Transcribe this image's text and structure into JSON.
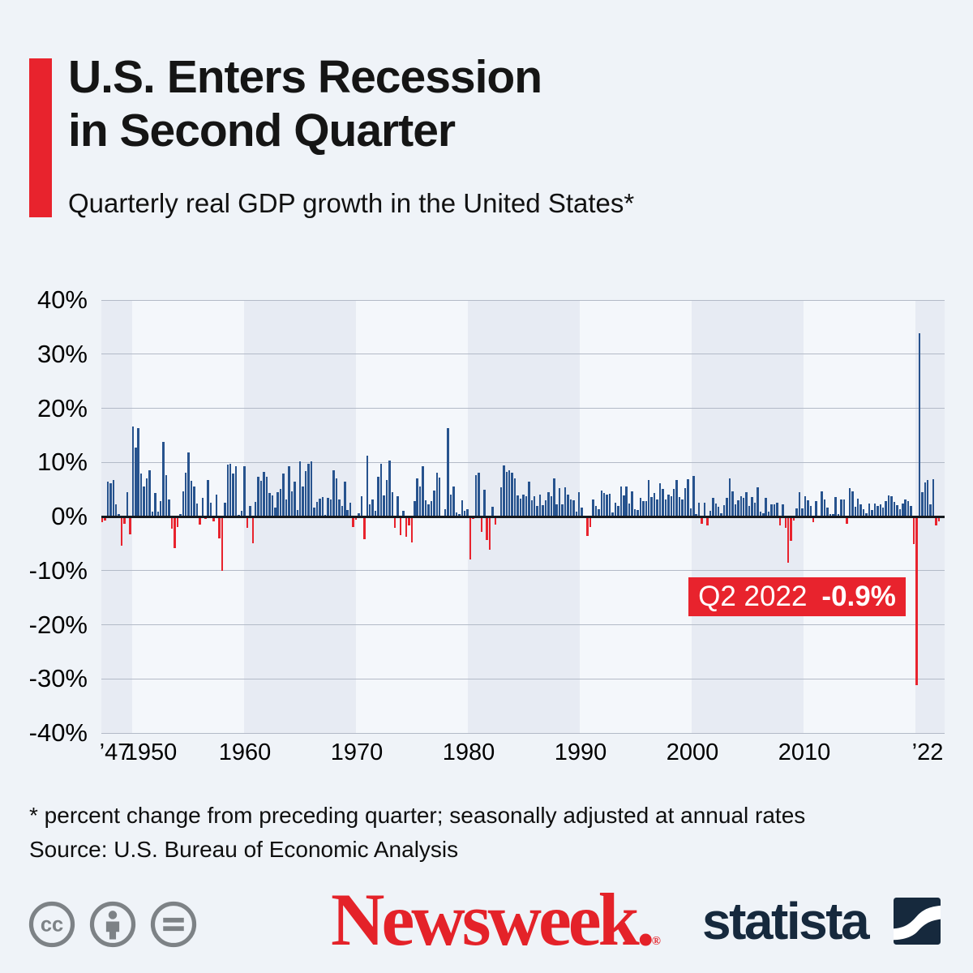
{
  "header": {
    "accent_color": "#e8232d",
    "title_line1": "U.S. Enters Recession",
    "title_line2": "in Second Quarter",
    "subtitle": "Quarterly real GDP growth in the United States*"
  },
  "chart_data": {
    "type": "bar",
    "title": "Quarterly real GDP growth in the United States",
    "unit": "percent change from preceding quarter, seasonally adjusted at annual rates",
    "ylim": [
      -40,
      40
    ],
    "grid": true,
    "legend_position": "none",
    "y_tick_labels": [
      "40%",
      "30%",
      "20%",
      "10%",
      "0%",
      "-10%",
      "-20%",
      "-30%",
      "-40%"
    ],
    "x_tick_labels": [
      "’47",
      "1950",
      "1960",
      "1970",
      "1980",
      "1990",
      "2000",
      "2010",
      "’22"
    ],
    "start_quarter": "1947-Q2",
    "end_quarter": "2022-Q2",
    "positive_color": "#27538e",
    "negative_color": "#e8232d",
    "annotation": {
      "quarter_label": "Q2 2022",
      "value_label": "-0.9%",
      "bg_color": "#e8232d"
    },
    "series": [
      {
        "name": "Quarterly real GDP growth (annualized %)",
        "values": [
          -1.0,
          -0.8,
          6.4,
          6.2,
          6.8,
          2.3,
          0.5,
          -5.4,
          -1.3,
          4.5,
          -3.3,
          16.6,
          12.8,
          16.4,
          7.9,
          5.5,
          7.1,
          8.5,
          0.9,
          4.3,
          0.9,
          2.9,
          13.8,
          7.6,
          3.1,
          -2.2,
          -5.9,
          -1.9,
          0.4,
          4.6,
          8.1,
          11.9,
          6.6,
          5.5,
          2.4,
          -1.5,
          3.4,
          -0.4,
          6.8,
          2.6,
          -0.9,
          4.0,
          -4.1,
          -10.0,
          2.6,
          9.6,
          9.7,
          7.9,
          9.3,
          0.3,
          1.1,
          9.3,
          -2.1,
          2.0,
          -5.0,
          2.7,
          7.4,
          6.6,
          8.3,
          7.4,
          4.4,
          3.9,
          1.6,
          4.5,
          5.1,
          8.0,
          3.2,
          9.3,
          4.7,
          6.5,
          1.2,
          10.2,
          5.6,
          8.4,
          9.8,
          10.2,
          1.6,
          2.7,
          3.3,
          3.6,
          0.3,
          3.4,
          3.1,
          8.5,
          7.0,
          3.1,
          1.9,
          6.5,
          1.2,
          2.6,
          -1.9,
          -0.6,
          0.6,
          3.7,
          -4.2,
          11.3,
          2.3,
          3.2,
          1.1,
          7.3,
          9.8,
          3.9,
          6.7,
          10.3,
          4.5,
          -2.1,
          3.8,
          -3.4,
          1.0,
          -3.8,
          -1.6,
          -4.8,
          2.9,
          7.0,
          5.5,
          9.3,
          3.0,
          2.2,
          2.9,
          4.8,
          8.1,
          7.2,
          0.0,
          1.4,
          16.4,
          4.1,
          5.5,
          0.7,
          0.4,
          3.0,
          1.0,
          1.3,
          -8.0,
          -0.5,
          7.7,
          8.1,
          -2.9,
          4.9,
          -4.3,
          -6.1,
          1.8,
          -1.5,
          0.2,
          5.4,
          9.4,
          8.2,
          8.6,
          8.1,
          7.1,
          3.9,
          3.3,
          4.0,
          3.7,
          6.4,
          3.0,
          3.8,
          1.9,
          4.1,
          2.1,
          3.0,
          4.5,
          3.7,
          7.0,
          2.2,
          5.3,
          2.2,
          5.4,
          4.1,
          3.1,
          3.0,
          0.9,
          4.5,
          1.6,
          0.0,
          -3.6,
          -1.9,
          3.2,
          2.0,
          1.4,
          4.8,
          4.4,
          4.1,
          4.2,
          0.8,
          2.5,
          1.9,
          5.5,
          3.9,
          5.6,
          2.4,
          4.7,
          1.4,
          1.2,
          3.4,
          2.9,
          2.8,
          6.8,
          3.6,
          4.4,
          3.1,
          6.2,
          5.1,
          3.1,
          4.1,
          3.8,
          5.1,
          6.7,
          3.6,
          3.2,
          5.3,
          6.9,
          1.5,
          7.5,
          0.5,
          2.5,
          -1.3,
          2.5,
          -1.6,
          1.1,
          3.5,
          2.4,
          1.8,
          0.6,
          2.1,
          3.5,
          7.0,
          4.7,
          2.3,
          3.0,
          3.7,
          3.5,
          4.5,
          1.9,
          3.6,
          2.5,
          5.4,
          0.9,
          0.6,
          3.5,
          0.9,
          2.3,
          2.2,
          2.5,
          -1.6,
          2.3,
          -2.1,
          -8.5,
          -4.5,
          -0.7,
          1.5,
          4.5,
          1.5,
          3.7,
          3.0,
          2.0,
          -1.0,
          2.9,
          -0.1,
          4.7,
          3.2,
          1.7,
          0.5,
          0.5,
          3.6,
          0.5,
          3.2,
          3.2,
          -1.4,
          5.2,
          4.7,
          1.8,
          3.3,
          2.3,
          1.3,
          0.6,
          2.4,
          1.2,
          2.4,
          2.0,
          2.3,
          1.7,
          2.9,
          3.9,
          3.8,
          2.7,
          2.1,
          1.3,
          2.4,
          3.2,
          2.8,
          1.9,
          -5.1,
          -31.2,
          33.8,
          4.5,
          6.3,
          6.7,
          2.3,
          6.9,
          -1.6,
          -0.9
        ]
      }
    ]
  },
  "footnotes": {
    "line1": "* percent change from preceding quarter; seasonally adjusted at annual rates",
    "line2": "Source: U.S. Bureau of Economic Analysis"
  },
  "footer": {
    "license_icons": [
      "cc-icon",
      "attribution-person-icon",
      "equals-icon"
    ],
    "newsweek_logo_text": "Newsweek",
    "newsweek_registered_mark": "®",
    "newsweek_color": "#e42229",
    "statista_logo_text": "statista",
    "statista_color": "#16293d"
  }
}
